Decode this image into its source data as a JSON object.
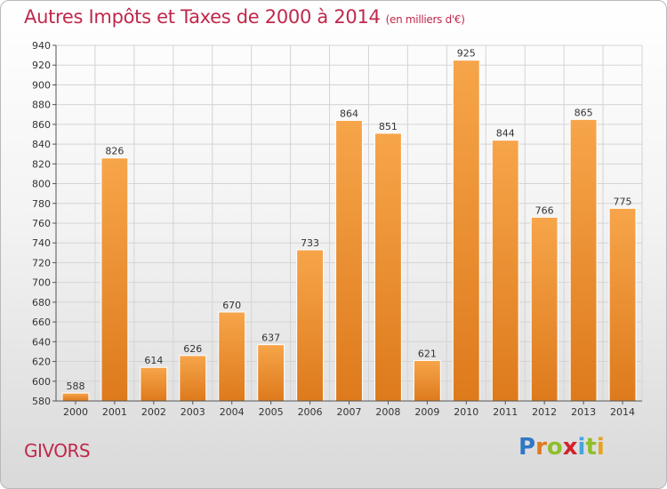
{
  "header": {
    "title": "Autres Impôts et Taxes de 2000 à 2014",
    "subtitle": "(en milliers d'€)"
  },
  "footer": {
    "place": "GIVORS",
    "brand_letters": [
      "P",
      "r",
      "o",
      "x",
      "i",
      "t",
      "i"
    ]
  },
  "chart_data": {
    "type": "bar",
    "title": "Autres Impôts et Taxes de 2000 à 2014",
    "subtitle": "(en milliers d'€)",
    "categories": [
      "2000",
      "2001",
      "2002",
      "2003",
      "2004",
      "2005",
      "2006",
      "2007",
      "2008",
      "2009",
      "2010",
      "2011",
      "2012",
      "2013",
      "2014"
    ],
    "values": [
      588,
      826,
      614,
      626,
      670,
      637,
      733,
      864,
      851,
      621,
      925,
      844,
      766,
      865,
      775
    ],
    "ylim": [
      580,
      940
    ],
    "yticks": [
      580,
      600,
      620,
      640,
      660,
      680,
      700,
      720,
      740,
      760,
      780,
      800,
      820,
      840,
      860,
      880,
      900,
      920,
      940
    ],
    "grid": true,
    "legend": "none",
    "colors": {
      "bar_light": "#f7a54a",
      "bar_dark": "#dd7a1c",
      "text_accent": "#c0284a"
    }
  }
}
